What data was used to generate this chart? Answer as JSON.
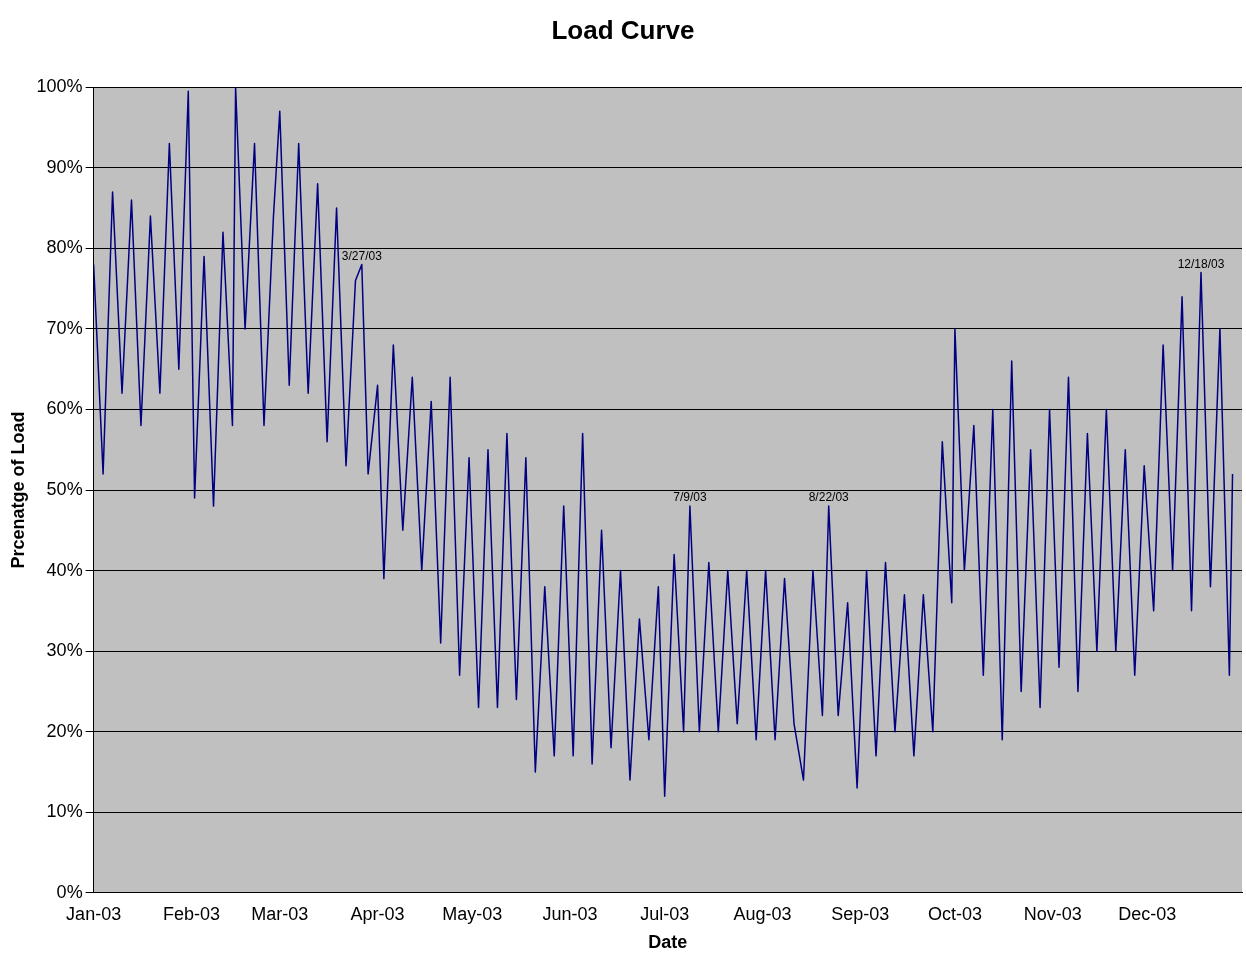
{
  "chart_data": {
    "type": "line",
    "title": "Load Curve",
    "xlabel": "Date",
    "ylabel": "Prcenatge of Load",
    "x": [
      "2003-01-01",
      "2003-01-04",
      "2003-01-07",
      "2003-01-10",
      "2003-01-13",
      "2003-01-16",
      "2003-01-19",
      "2003-01-22",
      "2003-01-25",
      "2003-01-28",
      "2003-01-31",
      "2003-02-02",
      "2003-02-05",
      "2003-02-08",
      "2003-02-11",
      "2003-02-14",
      "2003-02-15",
      "2003-02-18",
      "2003-02-21",
      "2003-02-24",
      "2003-02-27",
      "2003-03-01",
      "2003-03-04",
      "2003-03-07",
      "2003-03-10",
      "2003-03-13",
      "2003-03-16",
      "2003-03-19",
      "2003-03-22",
      "2003-03-25",
      "2003-03-27",
      "2003-03-29",
      "2003-04-01",
      "2003-04-03",
      "2003-04-06",
      "2003-04-09",
      "2003-04-12",
      "2003-04-15",
      "2003-04-18",
      "2003-04-21",
      "2003-04-24",
      "2003-04-27",
      "2003-04-30",
      "2003-05-03",
      "2003-05-06",
      "2003-05-09",
      "2003-05-12",
      "2003-05-15",
      "2003-05-18",
      "2003-05-21",
      "2003-05-24",
      "2003-05-27",
      "2003-05-30",
      "2003-06-02",
      "2003-06-05",
      "2003-06-08",
      "2003-06-11",
      "2003-06-14",
      "2003-06-17",
      "2003-06-20",
      "2003-06-23",
      "2003-06-26",
      "2003-06-29",
      "2003-07-01",
      "2003-07-04",
      "2003-07-07",
      "2003-07-09",
      "2003-07-12",
      "2003-07-15",
      "2003-07-18",
      "2003-07-21",
      "2003-07-24",
      "2003-07-27",
      "2003-07-30",
      "2003-08-02",
      "2003-08-05",
      "2003-08-08",
      "2003-08-11",
      "2003-08-14",
      "2003-08-17",
      "2003-08-20",
      "2003-08-22",
      "2003-08-25",
      "2003-08-28",
      "2003-08-31",
      "2003-09-03",
      "2003-09-06",
      "2003-09-09",
      "2003-09-12",
      "2003-09-15",
      "2003-09-18",
      "2003-09-21",
      "2003-09-24",
      "2003-09-27",
      "2003-09-30",
      "2003-10-01",
      "2003-10-04",
      "2003-10-07",
      "2003-10-10",
      "2003-10-13",
      "2003-10-16",
      "2003-10-19",
      "2003-10-22",
      "2003-10-25",
      "2003-10-28",
      "2003-10-31",
      "2003-11-03",
      "2003-11-06",
      "2003-11-09",
      "2003-11-12",
      "2003-11-15",
      "2003-11-18",
      "2003-11-21",
      "2003-11-24",
      "2003-11-27",
      "2003-11-30",
      "2003-12-03",
      "2003-12-06",
      "2003-12-09",
      "2003-12-12",
      "2003-12-15",
      "2003-12-18",
      "2003-12-21",
      "2003-12-24",
      "2003-12-27",
      "2003-12-28"
    ],
    "series": [
      {
        "color": "#000080",
        "values": [
          78,
          52,
          87,
          62,
          86,
          58,
          84,
          62,
          93,
          65,
          99.5,
          49,
          79,
          48,
          82,
          58,
          100,
          70,
          93,
          58,
          84,
          97,
          63,
          93,
          62,
          88,
          56,
          85,
          53,
          76,
          78,
          52,
          63,
          39,
          68,
          45,
          64,
          40,
          61,
          31,
          64,
          27,
          54,
          23,
          55,
          23,
          57,
          24,
          54,
          15,
          38,
          17,
          48,
          17,
          57,
          16,
          45,
          18,
          40,
          14,
          34,
          19,
          38,
          12,
          42,
          20,
          48,
          20,
          41,
          20,
          40,
          21,
          40,
          19,
          40,
          19,
          39,
          21,
          14,
          40,
          22,
          48,
          22,
          36,
          13,
          40,
          17,
          41,
          20,
          37,
          17,
          37,
          20,
          56,
          36,
          70,
          40,
          58,
          27,
          60,
          19,
          66,
          25,
          55,
          23,
          60,
          28,
          64,
          25,
          57,
          30,
          60,
          30,
          55,
          27,
          53,
          35,
          68,
          40,
          74,
          35,
          77,
          38,
          70,
          27,
          52
        ]
      }
    ],
    "xlim": [
      "2003-01-01",
      "2003-12-31"
    ],
    "xticks": [
      {
        "value": "2003-01-01",
        "label": "Jan-03"
      },
      {
        "value": "2003-02-01",
        "label": "Feb-03"
      },
      {
        "value": "2003-03-01",
        "label": "Mar-03"
      },
      {
        "value": "2003-04-01",
        "label": "Apr-03"
      },
      {
        "value": "2003-05-01",
        "label": "May-03"
      },
      {
        "value": "2003-06-01",
        "label": "Jun-03"
      },
      {
        "value": "2003-07-01",
        "label": "Jul-03"
      },
      {
        "value": "2003-08-01",
        "label": "Aug-03"
      },
      {
        "value": "2003-09-01",
        "label": "Sep-03"
      },
      {
        "value": "2003-10-01",
        "label": "Oct-03"
      },
      {
        "value": "2003-11-01",
        "label": "Nov-03"
      },
      {
        "value": "2003-12-01",
        "label": "Dec-03"
      }
    ],
    "ylim": [
      0,
      100
    ],
    "yticks": [
      {
        "value": 0,
        "label": "0%"
      },
      {
        "value": 10,
        "label": "10%"
      },
      {
        "value": 20,
        "label": "20%"
      },
      {
        "value": 30,
        "label": "30%"
      },
      {
        "value": 40,
        "label": "40%"
      },
      {
        "value": 50,
        "label": "50%"
      },
      {
        "value": 60,
        "label": "60%"
      },
      {
        "value": 70,
        "label": "70%"
      },
      {
        "value": 80,
        "label": "80%"
      },
      {
        "value": 90,
        "label": "90%"
      },
      {
        "value": 100,
        "label": "100%"
      }
    ],
    "grid": "y",
    "legend": false,
    "marker": "none",
    "line_style": "solid",
    "annotations": [
      {
        "text": "3/27/03",
        "x": "2003-03-27",
        "y": 78
      },
      {
        "text": "7/9/03",
        "x": "2003-07-09",
        "y": 48
      },
      {
        "text": "8/22/03",
        "x": "2003-08-22",
        "y": 48
      },
      {
        "text": "12/18/03",
        "x": "2003-12-18",
        "y": 77
      }
    ]
  }
}
